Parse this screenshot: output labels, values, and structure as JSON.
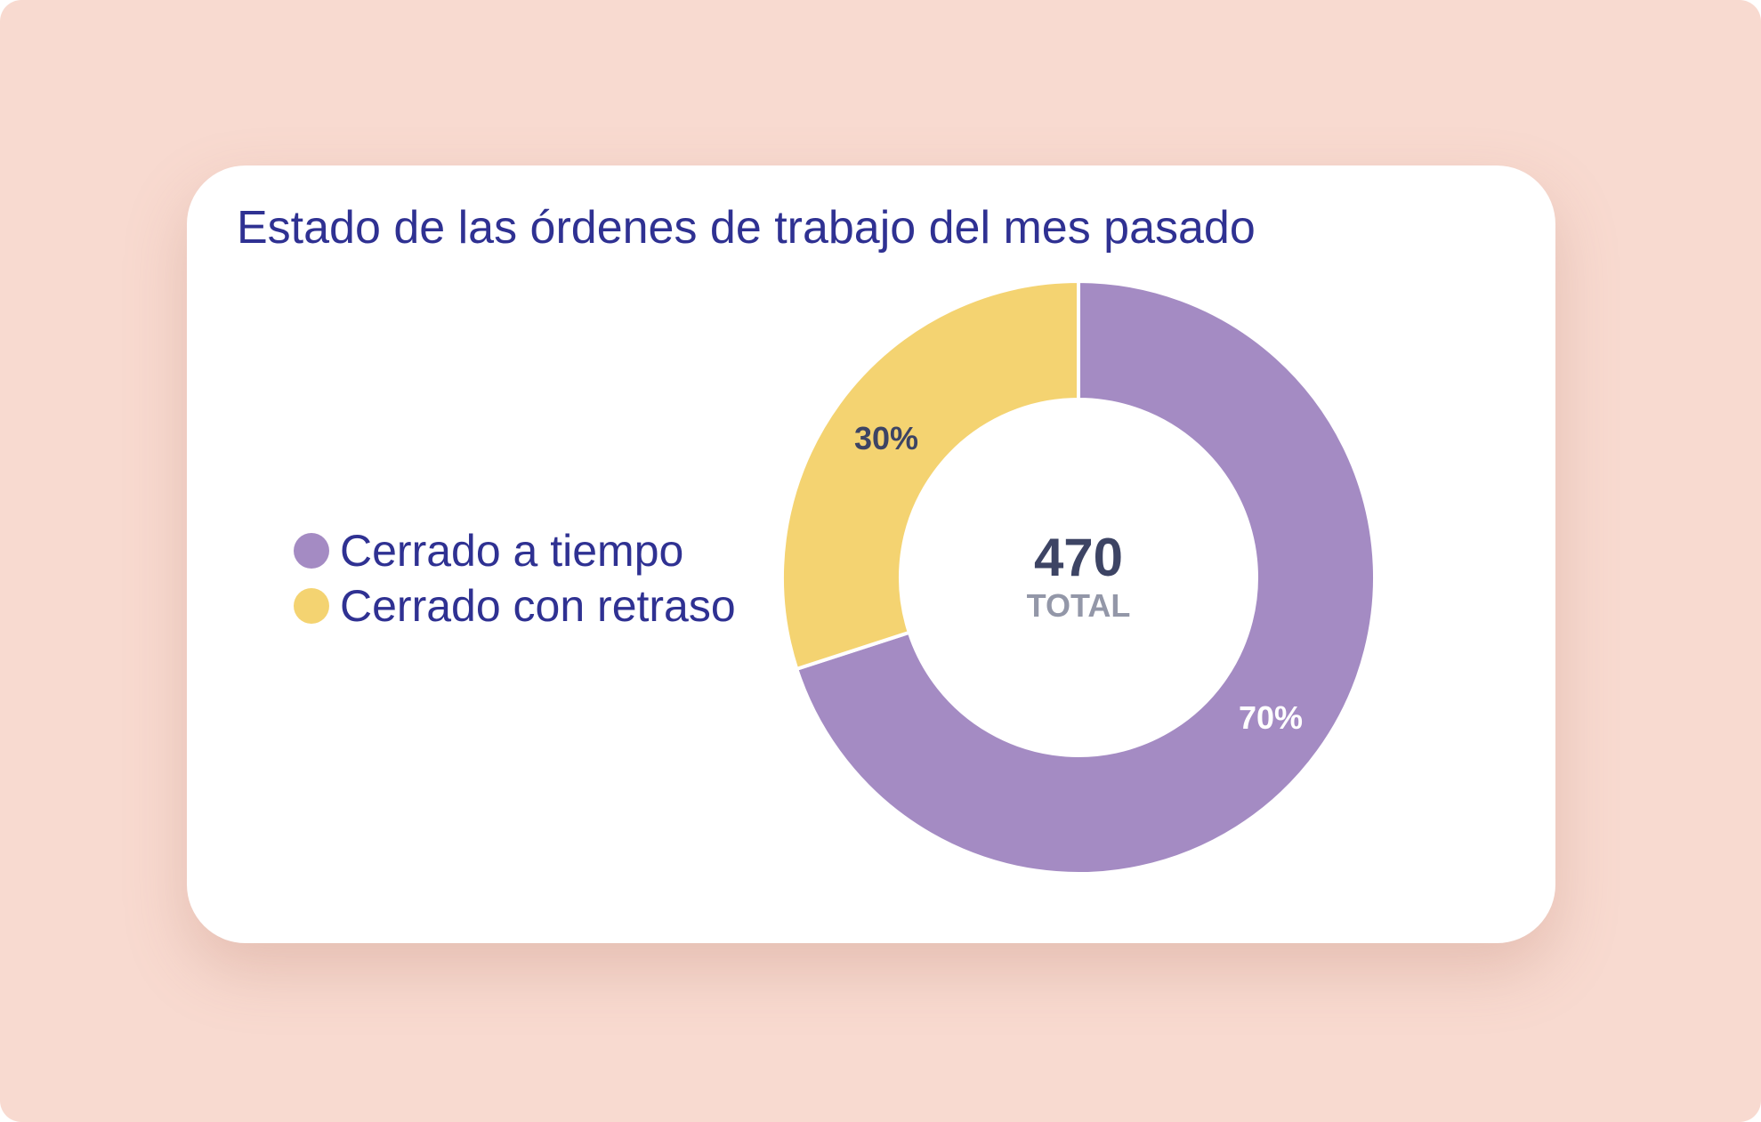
{
  "chart_data": {
    "type": "pie",
    "title": "Estado de las órdenes de trabajo del mes pasado",
    "categories": [
      "Cerrado a tiempo",
      "Cerrado con retraso"
    ],
    "values": [
      70,
      30
    ],
    "value_labels": [
      "70%",
      "30%"
    ],
    "colors": [
      "#a48bc3",
      "#f4d371"
    ],
    "label_colors": [
      "#ffffff",
      "#3d4464"
    ],
    "center": {
      "value": "470",
      "caption": "TOTAL"
    },
    "legend_position": "left",
    "style": "donut"
  }
}
